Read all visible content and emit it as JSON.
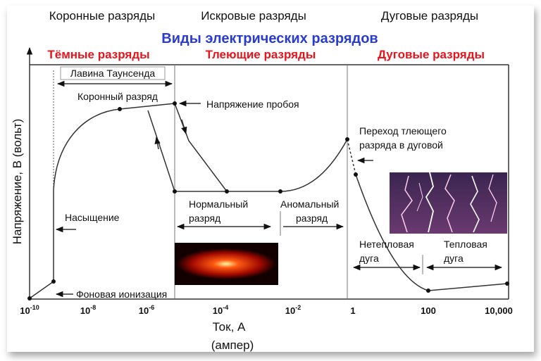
{
  "top_labels": [
    "Коронные разряды",
    "Искровые разряды",
    "Дуговые разряды"
  ],
  "title": "Виды электрических разрядов",
  "sections": [
    "Тёмные разряды",
    "Тлеющие разряды",
    "Дуговые разряды"
  ],
  "annotations": {
    "townsend": "Лавина Таунсенда",
    "corona": "Коронный разряд",
    "breakdown": "Напряжение пробоя",
    "saturation": "Насыщение",
    "background": "Фоновая ионизация",
    "normal": [
      "Нормальный",
      "разряд"
    ],
    "abnormal": [
      "Аномальный",
      "разряд"
    ],
    "transition": [
      "Переход тлеющего",
      "разряда в дуговой"
    ],
    "nonthermal": [
      "Нетепловая",
      "дуга"
    ],
    "thermal": [
      "Тепловая",
      "дуга"
    ]
  },
  "x_axis": {
    "label": [
      "Ток, А",
      "(ампер)"
    ],
    "ticks": [
      {
        "base": "10",
        "exp": "-10"
      },
      {
        "base": "10",
        "exp": "-8"
      },
      {
        "base": "10",
        "exp": "-6"
      },
      {
        "base": "10",
        "exp": "-4"
      },
      {
        "base": "10",
        "exp": "-2"
      },
      {
        "text": "1"
      },
      {
        "text": "100"
      },
      {
        "text": "10,000"
      }
    ]
  },
  "y_axis": {
    "label": "Напряжение, В (вольт)"
  }
}
